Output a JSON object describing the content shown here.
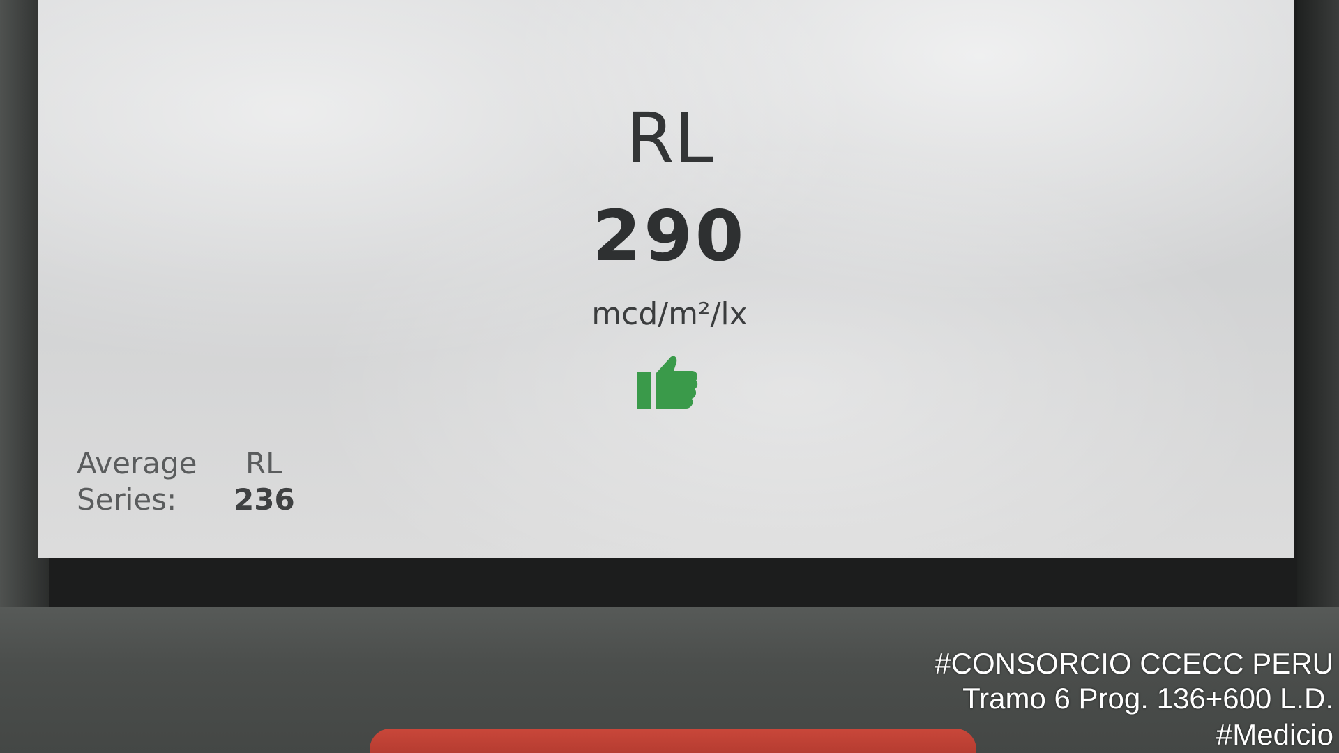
{
  "display": {
    "measure_label": "RL",
    "measure_value": "290",
    "unit": "mcd/m²/lx",
    "status_icon": "thumbs-up-icon",
    "status_color": "#3a9a4a",
    "average": {
      "label_line1": "Average",
      "label_line2": "Series:",
      "metric": "RL",
      "value": "236"
    }
  },
  "watermark": {
    "line1": "#CONSORCIO CCECC PERU",
    "line2": "Tramo 6 Prog. 136+600 L.D.",
    "line3": "#Medicio"
  }
}
